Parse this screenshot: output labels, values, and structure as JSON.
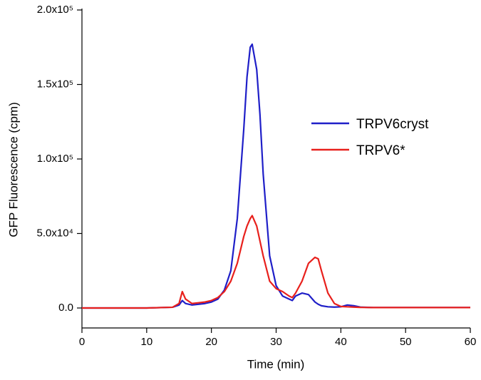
{
  "chart_data": {
    "type": "line",
    "x_label": "Time (min)",
    "y_label": "GFP Fluorescence (cpm)",
    "xlim": [
      0,
      60
    ],
    "xticks": [
      0,
      10,
      20,
      30,
      40,
      50,
      60
    ],
    "ylim": [
      -13400,
      200000
    ],
    "yticks": [
      {
        "value": 0,
        "label": "0.0"
      },
      {
        "value": 50000,
        "label": "5.0x10⁴"
      },
      {
        "value": 100000,
        "label": "1.0x10⁵"
      },
      {
        "value": 150000,
        "label": "1.5x10⁵"
      },
      {
        "value": 200000,
        "label": "2.0x10⁵"
      }
    ],
    "legend": "center-right",
    "x": [
      0,
      5,
      10,
      14,
      15,
      15.5,
      16,
      17,
      18,
      19,
      20,
      21,
      22,
      23,
      24,
      25,
      25.5,
      26,
      26.3,
      27,
      27.5,
      28,
      29,
      30,
      31,
      32,
      32.5,
      33,
      34,
      35,
      36,
      36.5,
      37,
      38,
      39,
      40,
      41,
      42,
      43,
      45,
      50,
      55,
      60
    ],
    "series": [
      {
        "name": "TRPV6cryst",
        "color": "#1f1fc8",
        "values": [
          0,
          0,
          0,
          500,
          2000,
          5000,
          3000,
          2000,
          2500,
          3000,
          4000,
          6000,
          12000,
          25000,
          60000,
          120000,
          155000,
          175000,
          177000,
          160000,
          130000,
          90000,
          35000,
          15000,
          8000,
          6000,
          5000,
          8000,
          10000,
          9000,
          4000,
          2500,
          1500,
          800,
          600,
          800,
          2000,
          1500,
          600,
          300,
          300,
          300,
          300
        ]
      },
      {
        "name": "TRPV6*",
        "color": "#e8201c",
        "values": [
          0,
          0,
          0,
          500,
          3000,
          11000,
          6000,
          3000,
          3500,
          4000,
          5000,
          7000,
          11000,
          18000,
          30000,
          48000,
          55000,
          60000,
          62000,
          55000,
          45000,
          35000,
          18000,
          13000,
          11000,
          8000,
          7000,
          10000,
          18000,
          30000,
          34000,
          33000,
          25000,
          10000,
          3000,
          1000,
          800,
          600,
          400,
          300,
          300,
          300,
          300
        ]
      }
    ]
  }
}
